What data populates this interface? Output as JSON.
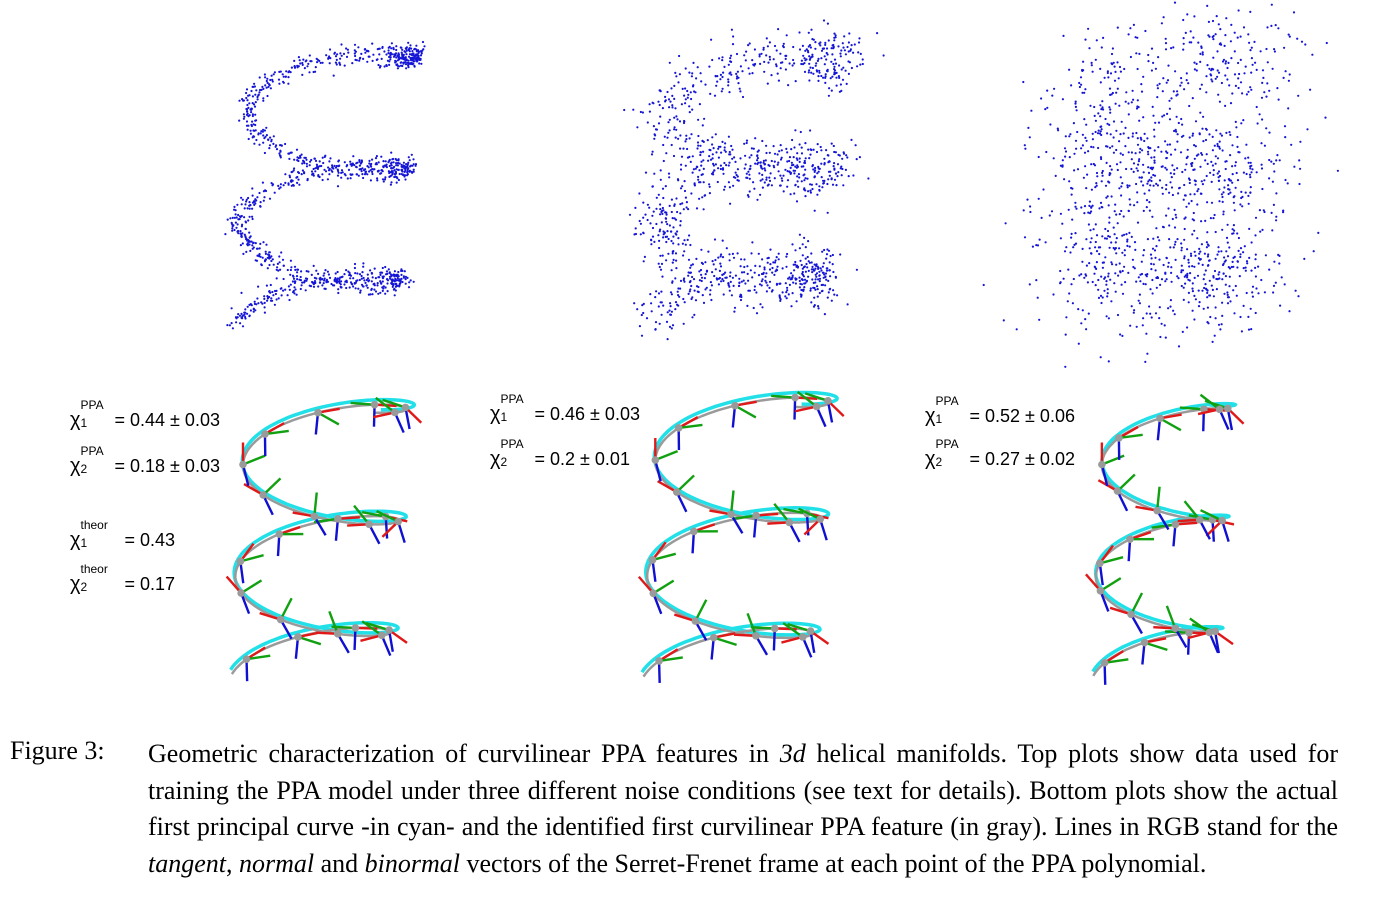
{
  "figure": {
    "label": "Figure 3:",
    "caption": {
      "p1": "Geometric characterization of curvilinear PPA features in ",
      "math_3d": "3d",
      "p2": " helical manifolds. Top plots show data used for training the PPA model under three different noise conditions (see text for details). Bottom plots show the actual first principal curve -in cyan- and the identified first curvilinear PPA feature (in gray). Lines in RGB stand for the ",
      "tangent": "tangent",
      "p3": ", ",
      "normal": "normal",
      "p4": " and ",
      "binormal": "binormal",
      "p5": " vectors of the Serret-Frenet frame at each point of the PPA polynomial."
    }
  },
  "colors": {
    "points": "#1515d6",
    "principal_curve": "#22e0e8",
    "ppa_feature": "#9a9a9a",
    "tangent": "#e01818",
    "normal": "#10a010",
    "binormal": "#1010d0"
  },
  "panels": [
    {
      "noise_level": "low",
      "metrics": {
        "chi1_ppa": {
          "sym": "χ",
          "sub": "1",
          "sup": "PPA",
          "value": "= 0.44 ± 0.03"
        },
        "chi2_ppa": {
          "sym": "χ",
          "sub": "2",
          "sup": "PPA",
          "value": "= 0.18 ± 0.03"
        },
        "chi1_theor": {
          "sym": "χ",
          "sub": "1",
          "sup": "theor",
          "value": "= 0.43"
        },
        "chi2_theor": {
          "sym": "χ",
          "sub": "2",
          "sup": "theor",
          "value": "= 0.17"
        }
      }
    },
    {
      "noise_level": "medium",
      "metrics": {
        "chi1_ppa": {
          "sym": "χ",
          "sub": "1",
          "sup": "PPA",
          "value": "= 0.46 ± 0.03"
        },
        "chi2_ppa": {
          "sym": "χ",
          "sub": "2",
          "sup": "PPA",
          "value": "= 0.2 ± 0.01"
        }
      }
    },
    {
      "noise_level": "high",
      "metrics": {
        "chi1_ppa": {
          "sym": "χ",
          "sub": "1",
          "sup": "PPA",
          "value": "= 0.52 ± 0.06"
        },
        "chi2_ppa": {
          "sym": "χ",
          "sub": "2",
          "sup": "PPA",
          "value": "= 0.27 ± 0.02"
        }
      }
    }
  ]
}
